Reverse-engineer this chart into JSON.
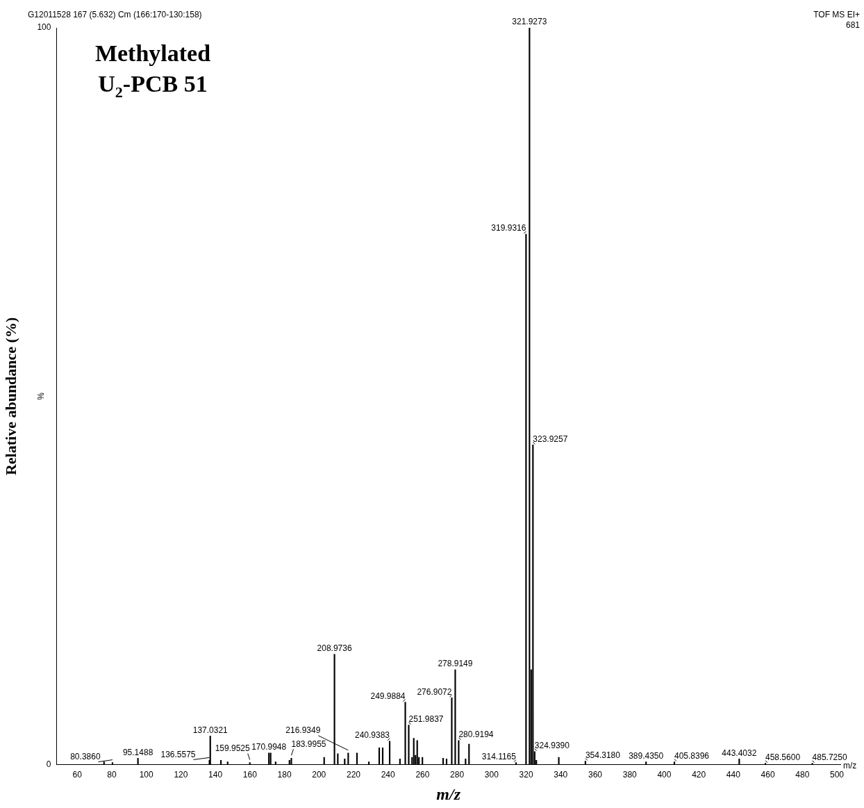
{
  "chart_data": {
    "type": "bar",
    "title": "Methylated U$_{2}$-PCB 51",
    "xlabel": "m/z",
    "ylabel": "Relative abundance (%)",
    "annotations": [
      "G12011528 167 (5.632) Cm (166:170-130:158)",
      "TOF MS EI+",
      "681",
      "%",
      "m/z",
      {
        "text": "80.3860",
        "x": 80.386,
        "y": 0.3
      },
      {
        "text": "95.1488",
        "x": 95.1488,
        "y": 0.9
      },
      {
        "text": "136.5575",
        "x": 136.5575,
        "y": 0.6
      },
      {
        "text": "137.0321",
        "x": 137.0321,
        "y": 3.9
      },
      {
        "text": "159.9525",
        "x": 159.9525,
        "y": 0.3
      },
      {
        "text": "170.9948",
        "x": 170.9948,
        "y": 1.6
      },
      {
        "text": "183.9955",
        "x": 183.9955,
        "y": 0.9
      },
      {
        "text": "208.9736",
        "x": 208.9736,
        "y": 15.0
      },
      {
        "text": "216.9349",
        "x": 216.9349,
        "y": 1.6
      },
      {
        "text": "240.9383",
        "x": 240.9383,
        "y": 3.2
      },
      {
        "text": "249.9884",
        "x": 249.9884,
        "y": 8.5
      },
      {
        "text": "251.9837",
        "x": 251.9837,
        "y": 5.4
      },
      {
        "text": "276.9072",
        "x": 276.9072,
        "y": 9.1
      },
      {
        "text": "278.9149",
        "x": 278.9149,
        "y": 12.9
      },
      {
        "text": "280.9194",
        "x": 280.9194,
        "y": 3.3
      },
      {
        "text": "314.1165",
        "x": 314.1165,
        "y": 0.3
      },
      {
        "text": "319.9316",
        "x": 319.9316,
        "y": 72.0
      },
      {
        "text": "321.9273",
        "x": 321.9273,
        "y": 100
      },
      {
        "text": "323.9257",
        "x": 323.9257,
        "y": 43.4
      },
      {
        "text": "324.9390",
        "x": 324.939,
        "y": 1.8
      },
      {
        "text": "354.3180",
        "x": 354.318,
        "y": 0.5
      },
      {
        "text": "389.4350",
        "x": 389.435,
        "y": 0.4
      },
      {
        "text": "405.8396",
        "x": 405.8396,
        "y": 0.4
      },
      {
        "text": "443.4032",
        "x": 443.4032,
        "y": 0.8
      },
      {
        "text": "458.5600",
        "x": 458.56,
        "y": 0.2
      },
      {
        "text": "485.7250",
        "x": 485.725,
        "y": 0.2
      }
    ],
    "x": [
      75.5,
      80.386,
      95.1488,
      136.5575,
      137.0321,
      143.2,
      147.1,
      159.9525,
      170.9948,
      172.0,
      174.9,
      182.9,
      183.9955,
      203.0,
      208.9736,
      210.9,
      214.9,
      216.9349,
      222.0,
      228.9,
      234.9,
      236.9,
      240.9383,
      246.9,
      249.9884,
      251.9837,
      253.9,
      254.9,
      255.9,
      256.9,
      257.9,
      259.9,
      271.9,
      273.9,
      276.9072,
      278.9149,
      280.9194,
      284.9,
      286.9,
      314.1165,
      319.9316,
      321.9273,
      322.9,
      323.9257,
      324.939,
      325.9,
      338.9,
      354.318,
      389.435,
      405.8396,
      443.4032,
      458.56,
      485.725
    ],
    "values": [
      0.4,
      0.3,
      0.9,
      0.6,
      3.9,
      0.6,
      0.4,
      0.3,
      1.6,
      1.6,
      0.4,
      0.6,
      0.9,
      1.0,
      15.0,
      1.5,
      0.8,
      1.6,
      1.6,
      0.4,
      2.3,
      2.3,
      3.2,
      0.8,
      8.5,
      5.4,
      1.0,
      3.6,
      1.3,
      3.3,
      1.0,
      1.0,
      0.9,
      0.8,
      9.1,
      12.9,
      3.3,
      0.8,
      2.8,
      0.3,
      72.0,
      100,
      12.9,
      43.4,
      1.8,
      0.6,
      1.0,
      0.5,
      0.4,
      0.4,
      0.8,
      0.2,
      0.2
    ],
    "color": "#000000",
    "xlim": [
      48,
      502
    ],
    "xticks": [
      60,
      80,
      100,
      120,
      140,
      160,
      180,
      200,
      220,
      240,
      260,
      280,
      300,
      320,
      340,
      360,
      380,
      400,
      420,
      440,
      460,
      480,
      500
    ],
    "ylim": [
      0,
      100
    ],
    "yticks": [
      0,
      100
    ]
  }
}
